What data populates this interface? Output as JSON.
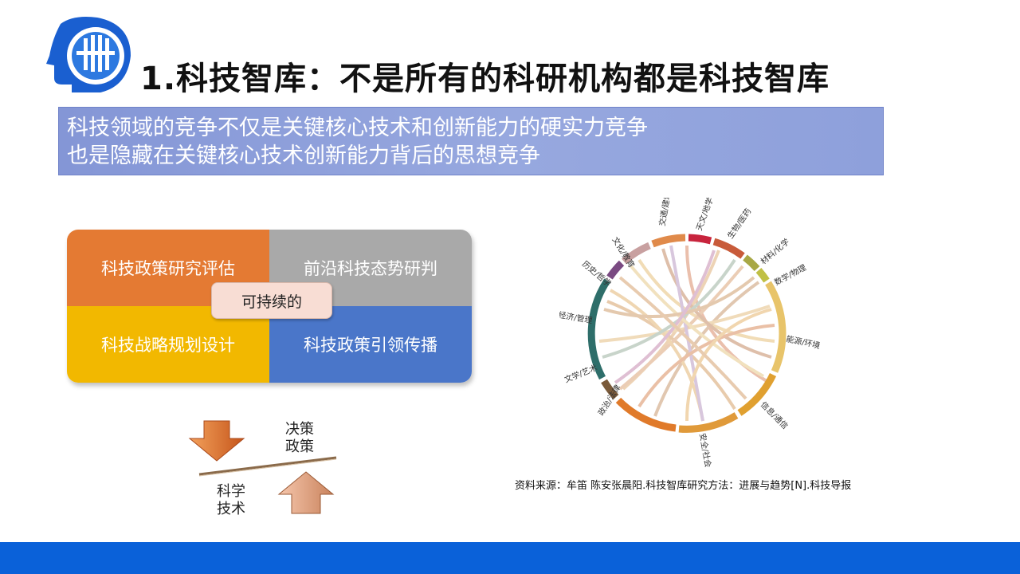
{
  "colors": {
    "accent_blue": "#0a61d9",
    "subtitle_bg": "#8e9fdb",
    "quad_orange": "#e47a33",
    "quad_gray": "#a9a9a9",
    "quad_yellow": "#f2b800",
    "quad_blue": "#4a76c9"
  },
  "logo": {
    "icon": "org-logo-icon"
  },
  "title": "1.科技智库：不是所有的科研机构都是科技智库",
  "subtitle": {
    "line1": "科技领域的竞争不仅是关键核心技术和创新能力的硬实力竞争",
    "line2": "也是隐藏在关键核心技术创新能力背后的思想竞争"
  },
  "quadrant": {
    "top_left": "科技政策研究评估",
    "top_right": "前沿科技态势研判",
    "bottom_left": "科技战略规划设计",
    "bottom_right": "科技政策引领传播",
    "center": "可持续的"
  },
  "lever": {
    "top_label_1": "决策",
    "top_label_2": "政策",
    "bottom_label_1": "科学",
    "bottom_label_2": "技术"
  },
  "chord": {
    "labels": [
      "交通/建筑",
      "天文/地学",
      "生物/医药",
      "材料/化学",
      "数学/物理",
      "能源/环境",
      "信息/通信",
      "安全/社会",
      "政治/法律",
      "文学/艺术",
      "经济/管理",
      "历史/哲学",
      "文化/教育"
    ]
  },
  "source": "资料来源：牟笛 陈安张晨阳.科技智库研究方法：进展与趋势[N].科技导报"
}
